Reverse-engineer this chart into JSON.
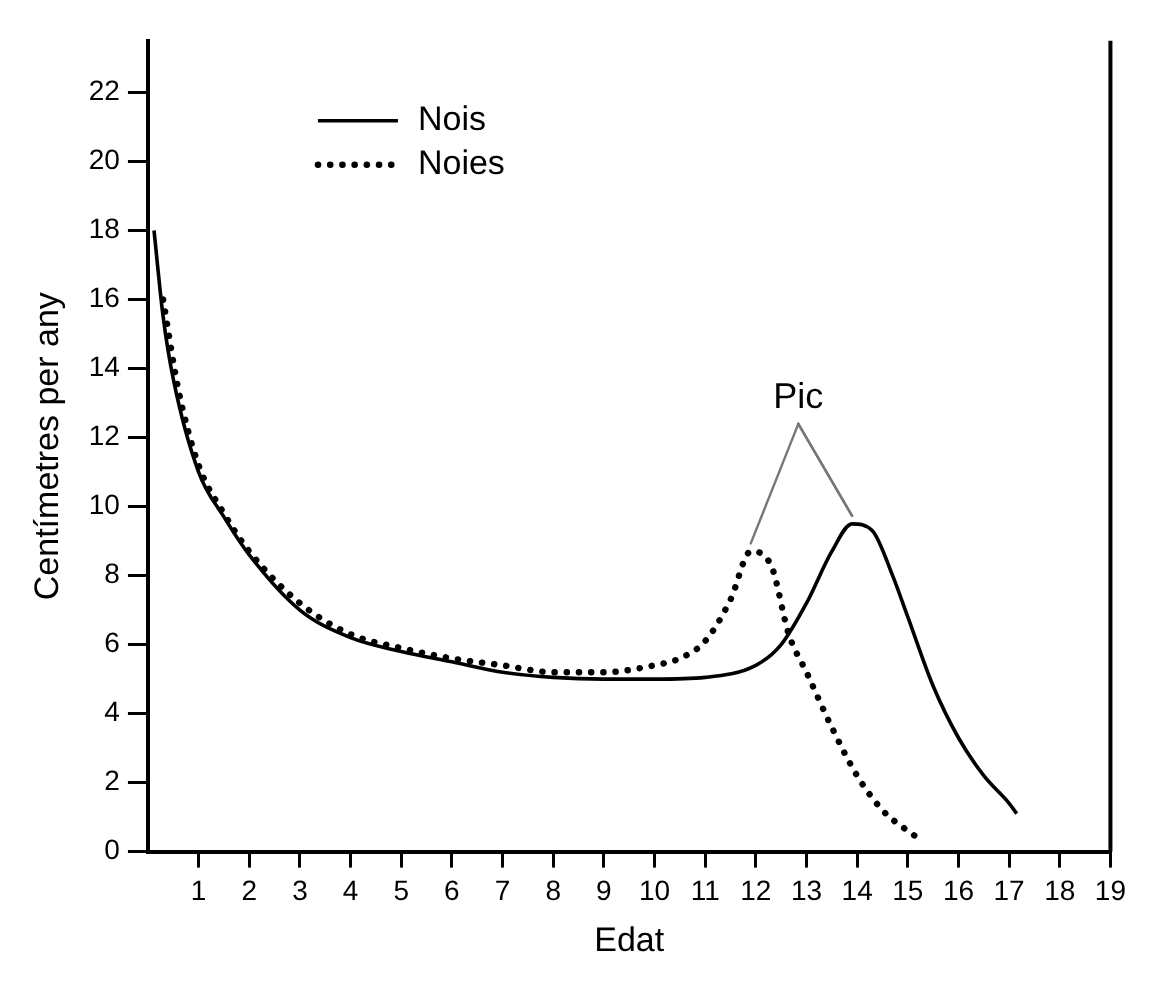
{
  "chart_data": {
    "type": "line",
    "xlabel": "Edat",
    "ylabel": "Centímetres per any",
    "xlim": [
      0,
      19
    ],
    "xticks": [
      1,
      2,
      3,
      4,
      5,
      6,
      7,
      8,
      9,
      10,
      11,
      12,
      13,
      14,
      15,
      16,
      17,
      18,
      19
    ],
    "ylim": [
      0,
      23.5
    ],
    "yticks": [
      0,
      2,
      4,
      6,
      8,
      10,
      12,
      14,
      16,
      18,
      20,
      22
    ],
    "grid": false,
    "legend": "top left",
    "marker": "none",
    "annotations": [
      {
        "text": "Pic",
        "x": 13.9,
        "y": 9.5
      }
    ],
    "series": [
      {
        "name": "Nois",
        "color": "#000000",
        "line_style": "solid",
        "x": [
          0.12,
          0.3,
          0.5,
          1,
          1.5,
          2,
          3,
          4,
          5,
          6,
          7,
          8,
          9,
          10,
          11,
          12,
          12.5,
          13,
          13.5,
          13.9,
          14.3,
          14.7,
          15,
          15.5,
          16,
          16.5,
          17,
          17.15
        ],
        "values": [
          18,
          15.5,
          13.7,
          11,
          9.7,
          8.6,
          7,
          6.2,
          5.8,
          5.5,
          5.2,
          5.05,
          5,
          5,
          5.05,
          5.4,
          6,
          7.2,
          8.7,
          9.5,
          9.3,
          8,
          6.8,
          4.8,
          3.3,
          2.2,
          1.4,
          1.1
        ]
      },
      {
        "name": "Noies",
        "color": "#000000",
        "line_style": "dotted",
        "x": [
          0.3,
          0.6,
          1,
          1.5,
          2,
          3,
          4,
          5,
          6,
          7,
          8,
          9,
          10,
          10.5,
          11,
          11.5,
          11.9,
          12.3,
          12.65,
          13,
          13.5,
          14,
          14.5,
          15,
          15.3
        ],
        "values": [
          16,
          13.4,
          11.2,
          9.8,
          8.7,
          7.2,
          6.3,
          5.9,
          5.6,
          5.4,
          5.2,
          5.2,
          5.4,
          5.6,
          6.1,
          7.3,
          8.7,
          8.3,
          6.3,
          5.2,
          3.6,
          2.2,
          1.2,
          0.6,
          0.3
        ]
      }
    ]
  }
}
